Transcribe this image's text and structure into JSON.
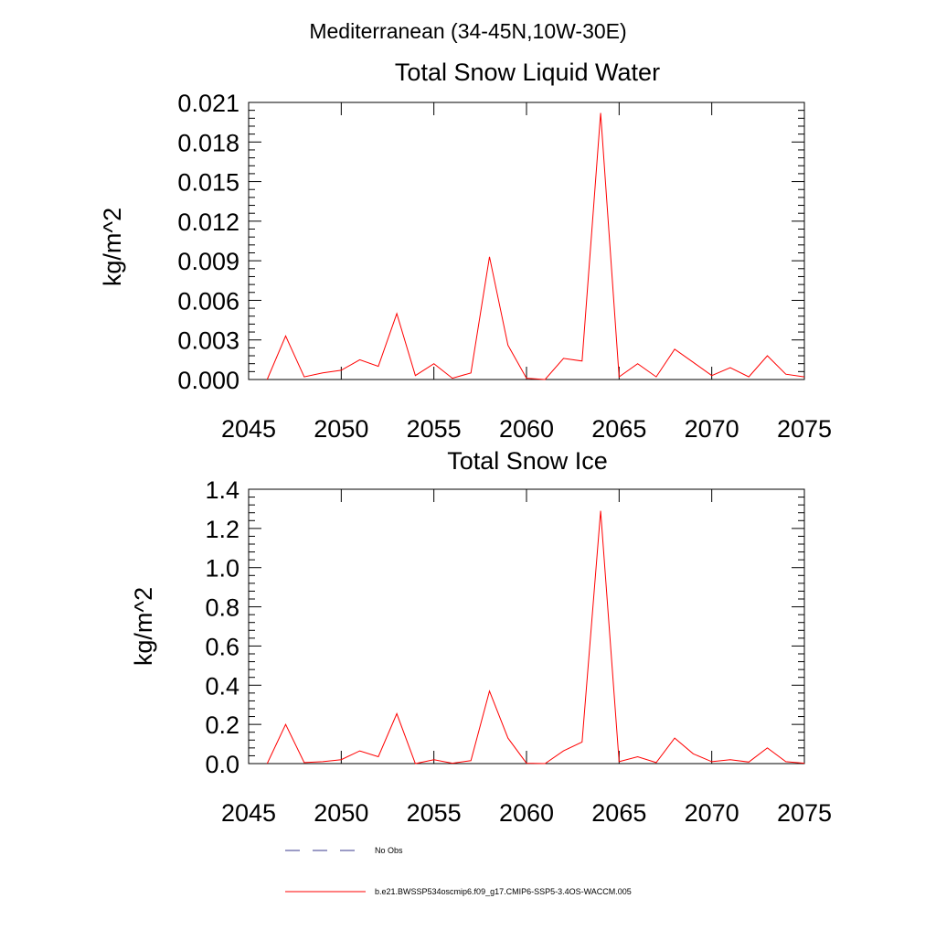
{
  "figure": {
    "suptitle": "Mediterranean (34-45N,10W-30E)"
  },
  "legend": {
    "entries": [
      {
        "label": "No Obs",
        "style": "dashed",
        "color": "#3a3a8c"
      },
      {
        "label": "b.e21.BWSSP534oscmip6.f09_g17.CMIP6-SSP5-3.4OS-WACCM.005",
        "style": "solid",
        "color": "#ff0000"
      }
    ]
  },
  "chart_data": [
    {
      "type": "line",
      "title": "Total Snow Liquid Water",
      "xlabel": "",
      "ylabel": "kg/m^2",
      "xlim": [
        2045,
        2075
      ],
      "ylim": [
        0,
        0.021
      ],
      "xticks": [
        2045,
        2050,
        2055,
        2060,
        2065,
        2070,
        2075
      ],
      "xtick_labels": [
        "2045",
        "2050",
        "2055",
        "2060",
        "2065",
        "2070",
        "2075"
      ],
      "yticks": [
        0,
        0.003,
        0.006,
        0.009,
        0.012,
        0.015,
        0.018,
        0.021
      ],
      "ytick_labels": [
        "0.000",
        "0.003",
        "0.006",
        "0.009",
        "0.012",
        "0.015",
        "0.018",
        "0.021"
      ],
      "grid": false,
      "series": [
        {
          "name": "b.e21.BWSSP534oscmip6.f09_g17.CMIP6-SSP5-3.4OS-WACCM.005",
          "color": "#ff0000",
          "x": [
            2046,
            2047,
            2048,
            2049,
            2050,
            2051,
            2052,
            2053,
            2054,
            2055,
            2056,
            2057,
            2058,
            2059,
            2060,
            2061,
            2062,
            2063,
            2064,
            2065,
            2066,
            2067,
            2068,
            2069,
            2070,
            2071,
            2072,
            2073,
            2074,
            2075
          ],
          "values": [
            0.0,
            0.0033,
            0.0002,
            0.0005,
            0.0007,
            0.0015,
            0.001,
            0.005,
            0.0003,
            0.0012,
            0.0001,
            0.0005,
            0.0093,
            0.0026,
            0.0001,
            0.0,
            0.0016,
            0.0014,
            0.0202,
            0.0002,
            0.0012,
            0.0002,
            0.0023,
            0.0013,
            0.0003,
            0.0009,
            0.0002,
            0.0018,
            0.0004,
            0.0002
          ]
        }
      ]
    },
    {
      "type": "line",
      "title": "Total Snow Ice",
      "xlabel": "",
      "ylabel": "kg/m^2",
      "xlim": [
        2045,
        2075
      ],
      "ylim": [
        0,
        1.4
      ],
      "xticks": [
        2045,
        2050,
        2055,
        2060,
        2065,
        2070,
        2075
      ],
      "xtick_labels": [
        "2045",
        "2050",
        "2055",
        "2060",
        "2065",
        "2070",
        "2075"
      ],
      "yticks": [
        0,
        0.2,
        0.4,
        0.6,
        0.8,
        1.0,
        1.2,
        1.4
      ],
      "ytick_labels": [
        "0.0",
        "0.2",
        "0.4",
        "0.6",
        "0.8",
        "1.0",
        "1.2",
        "1.4"
      ],
      "grid": false,
      "series": [
        {
          "name": "b.e21.BWSSP534oscmip6.f09_g17.CMIP6-SSP5-3.4OS-WACCM.005",
          "color": "#ff0000",
          "x": [
            2046,
            2047,
            2048,
            2049,
            2050,
            2051,
            2052,
            2053,
            2054,
            2055,
            2056,
            2057,
            2058,
            2059,
            2060,
            2061,
            2062,
            2063,
            2064,
            2065,
            2066,
            2067,
            2068,
            2069,
            2070,
            2071,
            2072,
            2073,
            2074,
            2075
          ],
          "values": [
            0.0,
            0.2,
            0.005,
            0.01,
            0.02,
            0.065,
            0.035,
            0.255,
            0.0,
            0.02,
            0.002,
            0.015,
            0.37,
            0.13,
            0.002,
            0.0,
            0.065,
            0.11,
            1.29,
            0.01,
            0.035,
            0.005,
            0.13,
            0.05,
            0.01,
            0.02,
            0.008,
            0.08,
            0.01,
            0.002
          ]
        }
      ]
    }
  ]
}
